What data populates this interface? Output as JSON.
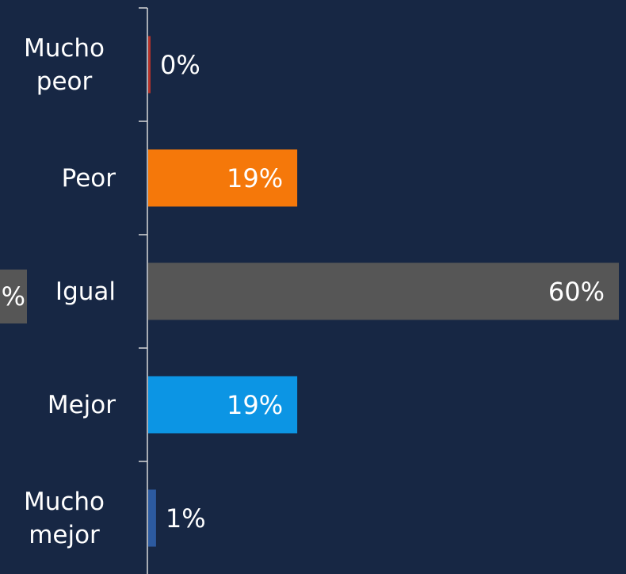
{
  "chart_data": {
    "type": "bar",
    "orientation": "horizontal",
    "categories": [
      "Mucho peor",
      "Peor",
      "Igual",
      "Mejor",
      "Mucho mejor"
    ],
    "values": [
      0,
      19,
      60,
      19,
      1
    ],
    "value_labels": [
      "0%",
      "19%",
      "60%",
      "19%",
      "1%"
    ],
    "colors": [
      "#b5322a",
      "#f5780a",
      "#565656",
      "#0c95e4",
      "#2c5aa0"
    ],
    "xlim": [
      0,
      60
    ],
    "annotation": "%"
  }
}
